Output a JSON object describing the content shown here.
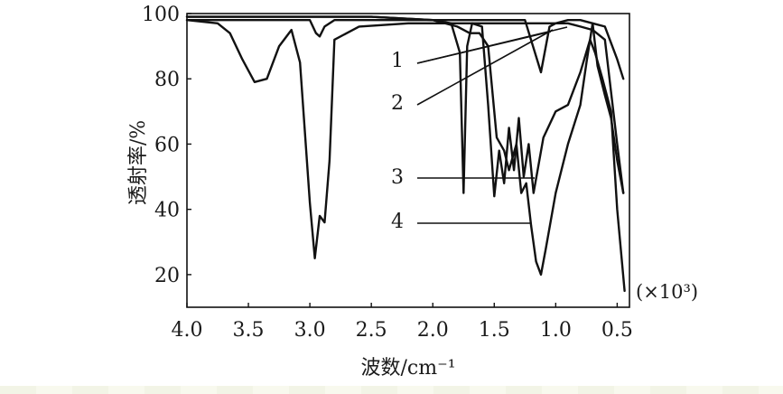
{
  "chart_data": {
    "type": "line",
    "title": "",
    "xlabel": "波数/cm⁻¹",
    "ylabel": "透射率/%",
    "x_scale_note": "(×10³)",
    "xlim": [
      4.0,
      0.4
    ],
    "ylim": [
      10,
      100
    ],
    "x_ticks": [
      "4.0",
      "3.5",
      "3.0",
      "2.5",
      "2.0",
      "1.5",
      "1.0",
      "0.5"
    ],
    "y_ticks": [
      "100",
      "80",
      "60",
      "40",
      "20"
    ],
    "grid": false,
    "legend": "numbered leader lines",
    "series": [
      {
        "name": "1",
        "x": [
          4.0,
          3.8,
          3.6,
          3.4,
          3.2,
          3.0,
          2.95,
          2.92,
          2.88,
          2.8,
          2.5,
          2.0,
          1.8,
          1.6,
          1.4,
          1.25,
          1.12,
          1.05,
          1.0,
          0.9,
          0.8,
          0.7,
          0.6,
          0.5,
          0.45
        ],
        "y": [
          98,
          98,
          98,
          98,
          98,
          98,
          94,
          93,
          96,
          98,
          98,
          98,
          98,
          98,
          98,
          98,
          82,
          96,
          97,
          98,
          98,
          97,
          96,
          86,
          80
        ]
      },
      {
        "name": "2",
        "x": [
          4.0,
          3.75,
          3.65,
          3.55,
          3.45,
          3.35,
          3.25,
          3.15,
          3.08,
          3.0,
          2.96,
          2.92,
          2.88,
          2.84,
          2.8,
          2.6,
          2.2,
          1.8,
          1.5,
          1.2,
          1.0,
          0.9,
          0.8,
          0.7,
          0.6,
          0.5,
          0.45
        ],
        "y": [
          98,
          97,
          94,
          86,
          79,
          80,
          90,
          95,
          85,
          42,
          25,
          38,
          36,
          55,
          92,
          96,
          97,
          97,
          97,
          97,
          97,
          97,
          96,
          95,
          92,
          60,
          45
        ]
      },
      {
        "name": "3",
        "x": [
          4.0,
          3.5,
          3.0,
          2.5,
          2.0,
          1.85,
          1.78,
          1.75,
          1.72,
          1.68,
          1.6,
          1.55,
          1.5,
          1.46,
          1.42,
          1.38,
          1.34,
          1.3,
          1.26,
          1.22,
          1.18,
          1.1,
          1.0,
          0.9,
          0.8,
          0.72,
          0.68,
          0.62,
          0.55,
          0.5,
          0.44
        ],
        "y": [
          99,
          99,
          99,
          99,
          98,
          97,
          88,
          45,
          90,
          97,
          96,
          72,
          44,
          58,
          48,
          65,
          52,
          68,
          50,
          60,
          45,
          62,
          70,
          72,
          82,
          92,
          88,
          80,
          70,
          40,
          15
        ]
      },
      {
        "name": "4",
        "x": [
          4.0,
          3.5,
          3.0,
          2.5,
          2.0,
          1.8,
          1.7,
          1.62,
          1.55,
          1.48,
          1.42,
          1.38,
          1.32,
          1.28,
          1.24,
          1.2,
          1.16,
          1.12,
          1.08,
          1.0,
          0.9,
          0.8,
          0.75,
          0.7,
          0.66,
          0.6,
          0.55,
          0.5,
          0.45
        ],
        "y": [
          99,
          99,
          99,
          99,
          98,
          96,
          94,
          94,
          90,
          62,
          58,
          52,
          60,
          45,
          48,
          35,
          24,
          20,
          28,
          45,
          60,
          72,
          85,
          97,
          84,
          75,
          68,
          55,
          45
        ]
      }
    ]
  }
}
